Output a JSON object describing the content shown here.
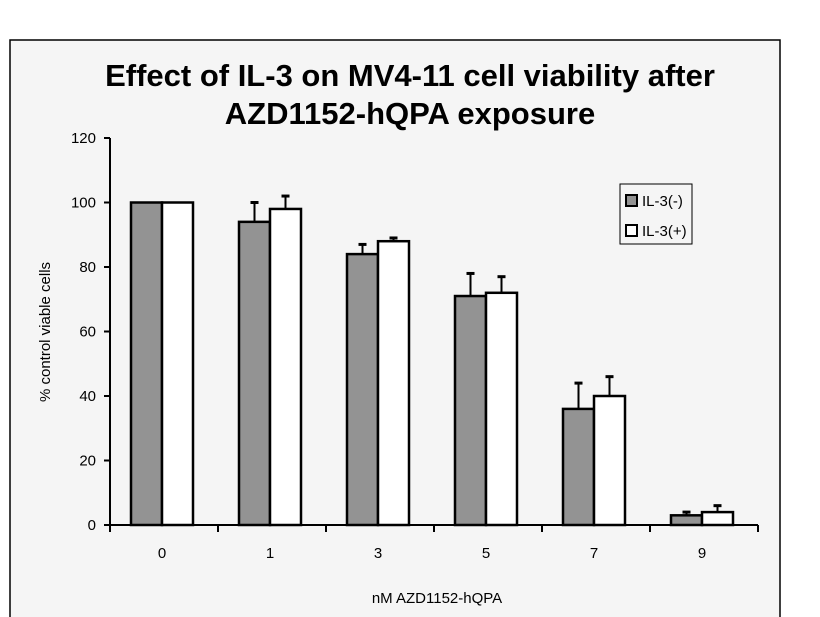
{
  "chart_data": {
    "type": "bar",
    "title": "Effect of IL-3 on MV4-11 cell viability after AZD1152-hQPA exposure",
    "title_lines": [
      "Effect of IL-3 on MV4-11 cell viability after",
      "AZD1152-hQPA exposure"
    ],
    "xlabel": "nM AZD1152-hQPA",
    "ylabel": "% control viable cells",
    "ylim": [
      0,
      120
    ],
    "yticks": [
      "0",
      "20",
      "40",
      "60",
      "80",
      "100",
      "120"
    ],
    "categories": [
      "0",
      "1",
      "3",
      "5",
      "7",
      "9"
    ],
    "series": [
      {
        "name": "IL-3(-)",
        "color": "#939393",
        "values": [
          100,
          94,
          84,
          71,
          36,
          3
        ],
        "error_upper": [
          100,
          100,
          87,
          78,
          44,
          4
        ]
      },
      {
        "name": "IL-3(+)",
        "color": "#ffffff",
        "values": [
          100,
          98,
          88,
          72,
          40,
          4
        ],
        "error_upper": [
          100,
          102,
          89,
          77,
          46,
          6
        ]
      }
    ],
    "legend": "right",
    "grid": false,
    "background": "#f5f5f5"
  }
}
